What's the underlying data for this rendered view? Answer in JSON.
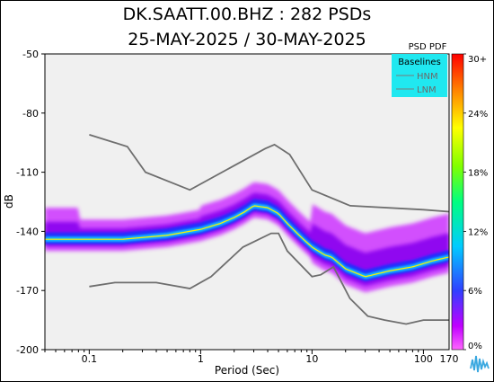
{
  "chart_data": {
    "type": "heatmap",
    "title": "DK.SAATT.00.BHZ : 282 PSDs",
    "subtitle": "25-MAY-2025 / 30-MAY-2025",
    "xlabel": "Period (Sec)",
    "ylabel": "dB",
    "x_scale": "log",
    "xlim": [
      0.04,
      170
    ],
    "ylim": [
      -200,
      -50
    ],
    "x_ticks": [
      {
        "value": 0.1,
        "label": "0.1"
      },
      {
        "value": 1,
        "label": "1"
      },
      {
        "value": 10,
        "label": "10"
      },
      {
        "value": 100,
        "label": "100"
      },
      {
        "value": 170,
        "label": "170"
      }
    ],
    "y_ticks": [
      {
        "value": -50,
        "label": "-50"
      },
      {
        "value": -80,
        "label": "-80"
      },
      {
        "value": -110,
        "label": "-110"
      },
      {
        "value": -140,
        "label": "-140"
      },
      {
        "value": -170,
        "label": "-170"
      },
      {
        "value": -200,
        "label": "-200"
      }
    ],
    "colorbar": {
      "title": "PSD PDF",
      "ticks": [
        "30+",
        "24%",
        "18%",
        "12%",
        "6%",
        "0%"
      ]
    },
    "legend": {
      "title": "Baselines",
      "entries": [
        "HNM",
        "LNM"
      ],
      "placement": "top-right"
    },
    "baselines": {
      "HNM": [
        [
          0.1,
          -91
        ],
        [
          0.22,
          -97
        ],
        [
          0.32,
          -110
        ],
        [
          0.8,
          -119
        ],
        [
          3.8,
          -98
        ],
        [
          4.6,
          -96
        ],
        [
          6.3,
          -101
        ],
        [
          10,
          -119
        ],
        [
          22,
          -127
        ],
        [
          100,
          -129
        ],
        [
          170,
          -130
        ]
      ],
      "LNM": [
        [
          0.1,
          -168
        ],
        [
          0.17,
          -166
        ],
        [
          0.4,
          -166
        ],
        [
          0.8,
          -169
        ],
        [
          1.24,
          -163
        ],
        [
          2.4,
          -148
        ],
        [
          4.3,
          -141
        ],
        [
          5,
          -141
        ],
        [
          6,
          -150
        ],
        [
          10,
          -163
        ],
        [
          12,
          -162
        ],
        [
          15.6,
          -158
        ],
        [
          21.9,
          -174
        ],
        [
          31.6,
          -183
        ],
        [
          45,
          -185
        ],
        [
          70,
          -187
        ],
        [
          100,
          -185
        ],
        [
          170,
          -185
        ]
      ]
    },
    "mode_curve": [
      [
        0.04,
        -144
      ],
      [
        0.06,
        -144
      ],
      [
        0.08,
        -144
      ],
      [
        0.1,
        -144
      ],
      [
        0.2,
        -144
      ],
      [
        0.5,
        -142
      ],
      [
        1,
        -139
      ],
      [
        1.5,
        -136
      ],
      [
        2,
        -133
      ],
      [
        2.5,
        -130
      ],
      [
        3,
        -127
      ],
      [
        4,
        -128
      ],
      [
        5,
        -131
      ],
      [
        6,
        -136
      ],
      [
        8,
        -143
      ],
      [
        10,
        -148
      ],
      [
        13,
        -152
      ],
      [
        15,
        -153
      ],
      [
        20,
        -159
      ],
      [
        30,
        -163
      ],
      [
        50,
        -160
      ],
      [
        80,
        -158
      ],
      [
        120,
        -155
      ],
      [
        170,
        -153
      ]
    ]
  }
}
